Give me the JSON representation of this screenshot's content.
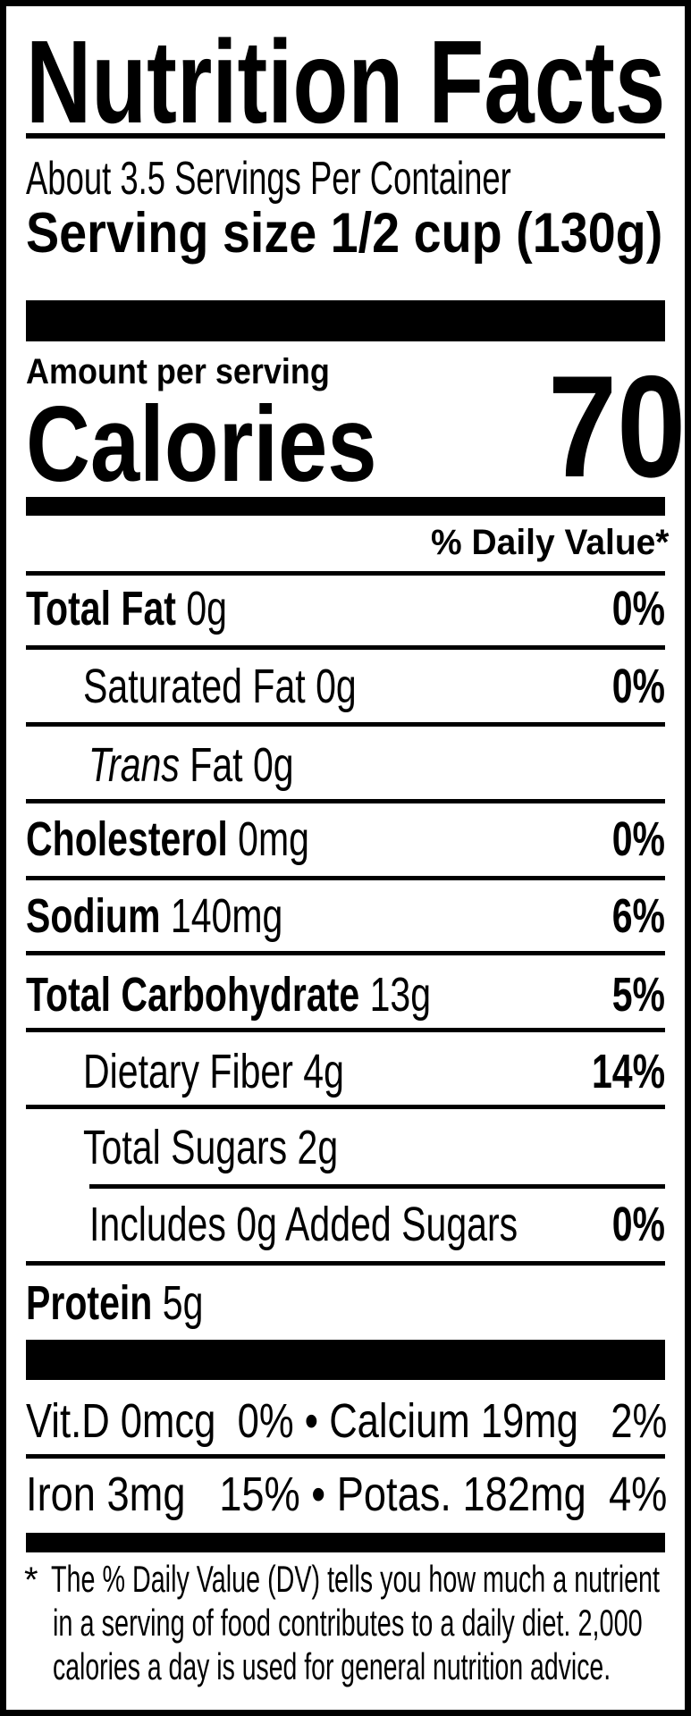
{
  "title": "Nutrition Facts",
  "servings_per_container": "About 3.5 Servings Per Container",
  "serving_size": "Serving size 1/2 cup (130g)",
  "amount_per_serving": "Amount per serving",
  "calories_label": "Calories",
  "calories_value": "70",
  "daily_value_header": "% Daily Value*",
  "nutrients": {
    "total_fat": {
      "label": "Total Fat",
      "amount": " 0g",
      "dv": "0%"
    },
    "saturated_fat": {
      "label": "Saturated Fat 0g",
      "dv": "0%"
    },
    "trans_fat": {
      "label_italic": "Trans",
      "label": " Fat 0g"
    },
    "cholesterol": {
      "label": "Cholesterol",
      "amount": " 0mg",
      "dv": "0%"
    },
    "sodium": {
      "label": "Sodium",
      "amount": " 140mg",
      "dv": "6%"
    },
    "total_carbohydrate": {
      "label": "Total Carbohydrate",
      "amount": " 13g",
      "dv": "5%"
    },
    "dietary_fiber": {
      "label": "Dietary Fiber 4g",
      "dv": "14%"
    },
    "total_sugars": {
      "label": "Total Sugars 2g"
    },
    "added_sugars": {
      "label": "Includes 0g Added Sugars",
      "dv": "0%"
    },
    "protein": {
      "label": "Protein",
      "amount": " 5g"
    }
  },
  "micronutrients": {
    "vitamin_d": "Vit.D 0mcg  0%",
    "calcium": "Calcium 19mg   2%",
    "iron": "Iron 3mg   15%",
    "potassium": "Potas. 182mg  4%",
    "separator": "•"
  },
  "footnote": {
    "asterisk": "*",
    "line1": "The % Daily Value (DV) tells you how much a nutrient",
    "line2": "in a serving of food contributes to a daily diet. 2,000",
    "line3": "calories a day is used for general nutrition advice."
  }
}
